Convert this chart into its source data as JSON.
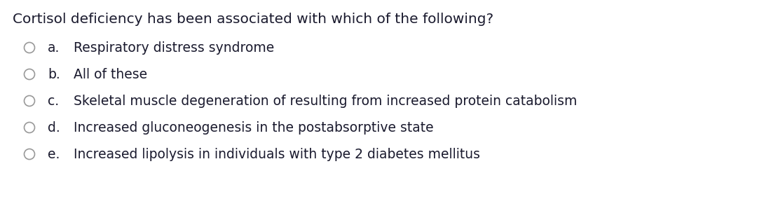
{
  "title": "Cortisol deficiency has been associated with which of the following?",
  "options": [
    {
      "label": "a.",
      "text": "Respiratory distress syndrome"
    },
    {
      "label": "b.",
      "text": "All of these"
    },
    {
      "label": "c.",
      "text": "Skeletal muscle degeneration of resulting from increased protein catabolism"
    },
    {
      "label": "d.",
      "text": "Increased gluconeogenesis in the postabsorptive state"
    },
    {
      "label": "e.",
      "text": "Increased lipolysis in individuals with type 2 diabetes mellitus"
    }
  ],
  "background_color": "#ffffff",
  "text_color": "#1a1a2e",
  "circle_edge_color": "#999999",
  "title_fontsize": 14.5,
  "option_fontsize": 13.5,
  "label_fontsize": 13.5
}
